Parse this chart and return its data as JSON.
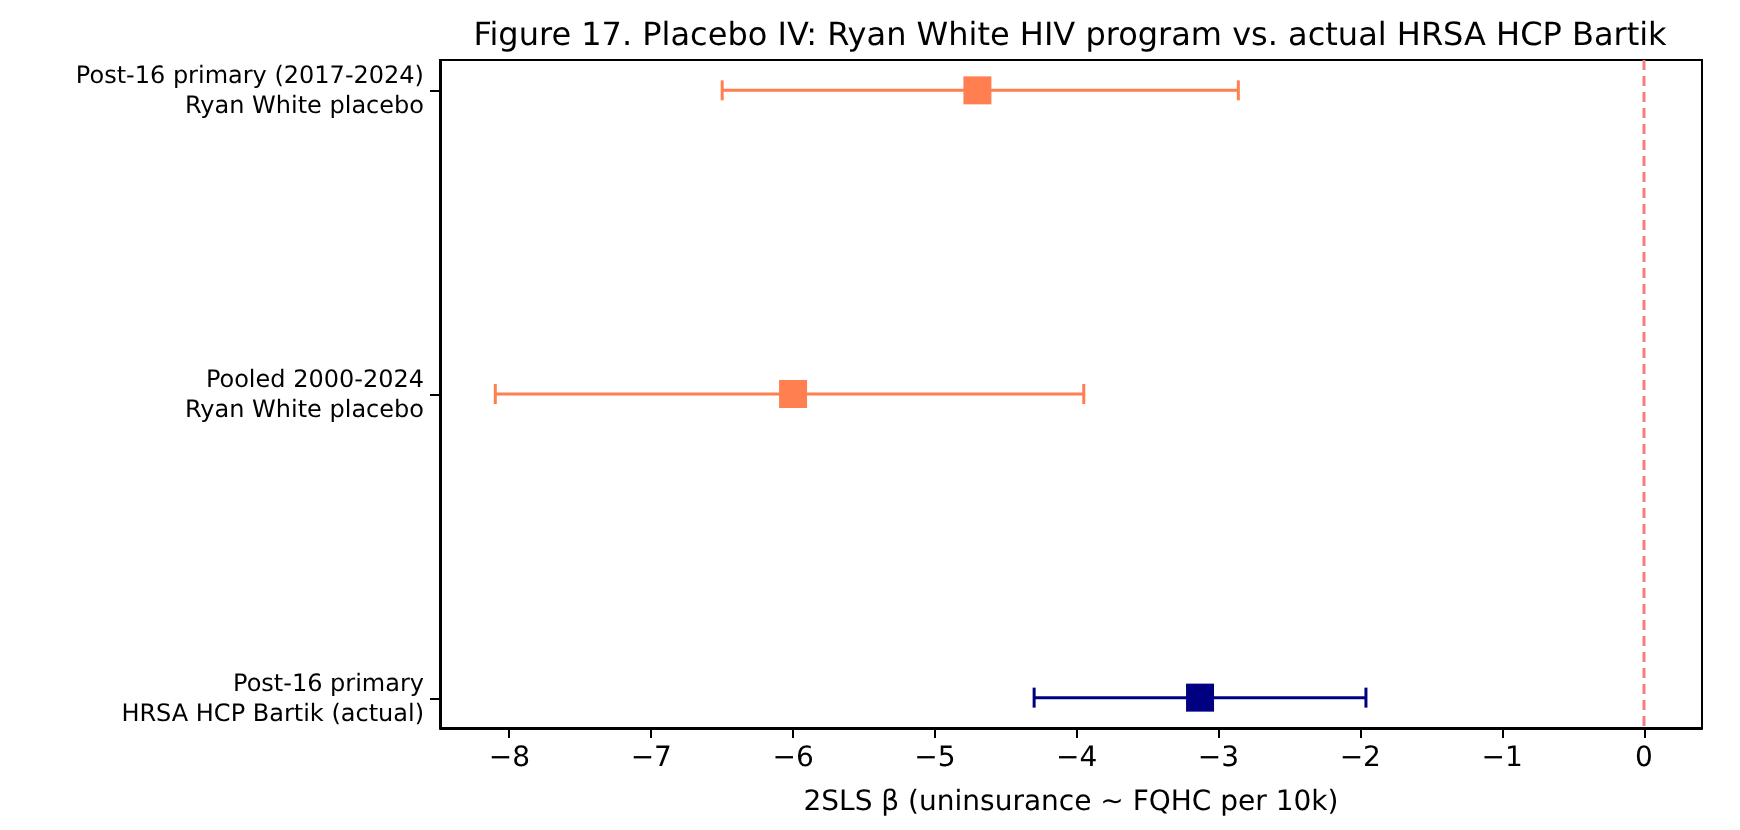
{
  "chart_data": {
    "type": "scatter",
    "orientation": "horizontal",
    "title": "Figure 17. Placebo IV: Ryan White HIV program vs. actual HRSA HCP Bartik",
    "xlabel": "2SLS β (uninsurance ~ FQHC per 10k)",
    "categories": [
      "Post-16 primary (2017-2024)\nRyan White placebo",
      "Pooled 2000-2024\nRyan White placebo",
      "Post-16 primary\nHRSA HCP Bartik (actual)"
    ],
    "values": [
      -4.7,
      -6.0,
      -3.13
    ],
    "errors": [
      [
        -6.5,
        -2.86
      ],
      [
        -8.1,
        -3.95
      ],
      [
        -4.3,
        -1.96
      ]
    ],
    "colors": [
      "#ff7f50",
      "#ff7f50",
      "#000080"
    ],
    "xlim": [
      -8.49,
      0.41
    ],
    "xticks": [
      -8,
      -7,
      -6,
      -5,
      -4,
      -3,
      -2,
      -1,
      0
    ],
    "ref_lines": [
      {
        "axis": "x",
        "value": 0,
        "color": "#f08080",
        "line_style": "dashed"
      }
    ],
    "marker": "square",
    "grid": false
  }
}
